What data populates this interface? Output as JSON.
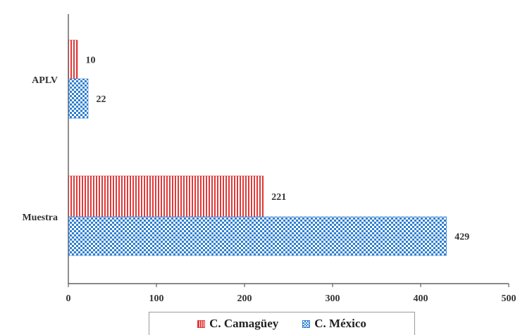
{
  "chart_data": {
    "type": "bar",
    "orientation": "horizontal",
    "categories": [
      "APLV",
      "Muestra"
    ],
    "series": [
      {
        "name": "C. Camagüey",
        "values": [
          10,
          221
        ],
        "color": "#e03a3a",
        "pattern": "vertical-stripes"
      },
      {
        "name": "C. México",
        "values": [
          22,
          429
        ],
        "color": "#2f7fd0",
        "pattern": "checker"
      }
    ],
    "x_ticks": [
      "0",
      "100",
      "200",
      "300",
      "400",
      "500"
    ],
    "xlim": [
      0,
      500
    ],
    "title": "",
    "xlabel": "",
    "ylabel": "",
    "grid": false,
    "legend": "bottom"
  }
}
